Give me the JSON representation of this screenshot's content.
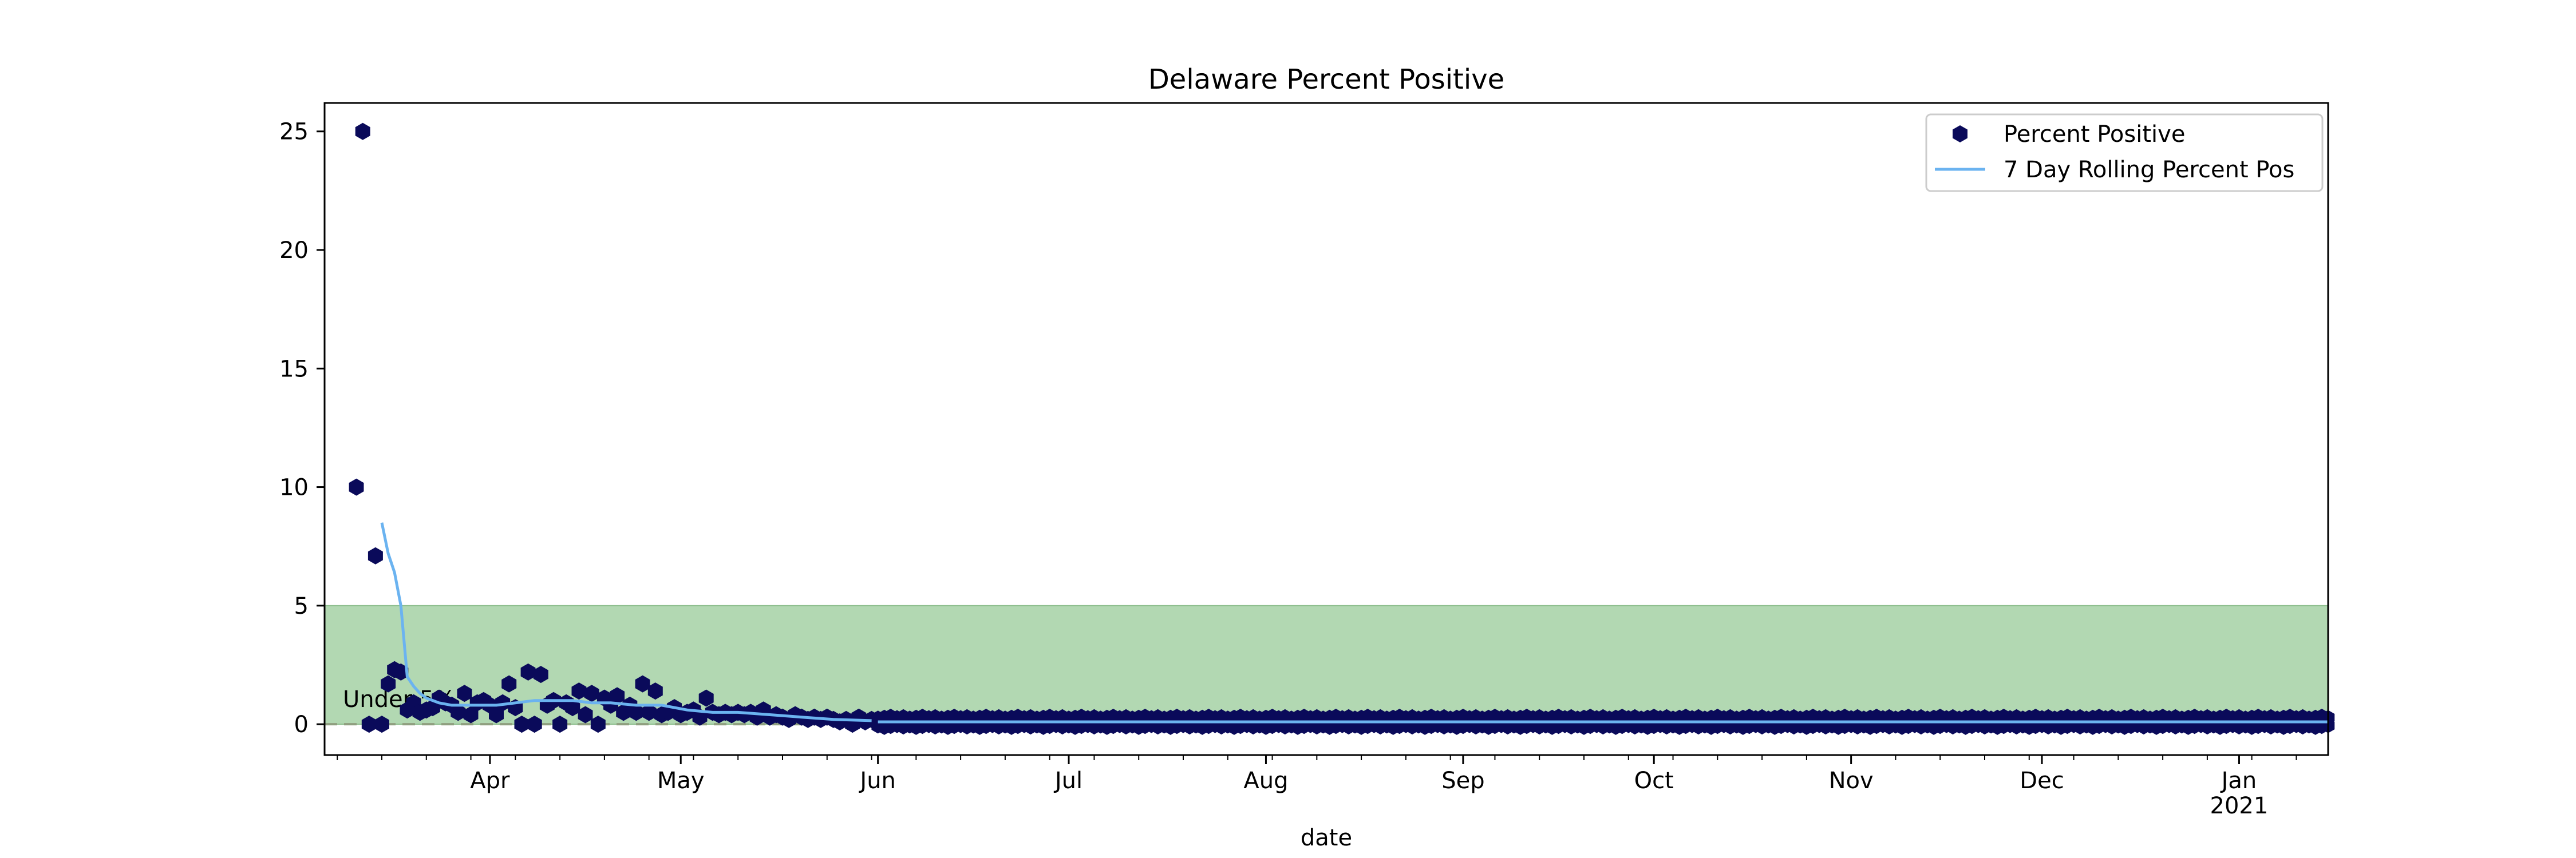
{
  "chart_data": {
    "type": "scatter",
    "title": "Delaware Percent Positive",
    "xlabel": "date",
    "ylabel": "",
    "xlim": [
      "2020-03-06",
      "2021-01-15"
    ],
    "ylim": [
      -1.3,
      26.2
    ],
    "yticks": [
      0,
      5,
      10,
      15,
      20,
      25
    ],
    "xticks": [
      {
        "date": "2020-04-01",
        "label": "Apr",
        "sublabel": ""
      },
      {
        "date": "2020-05-01",
        "label": "May",
        "sublabel": ""
      },
      {
        "date": "2020-06-01",
        "label": "Jun",
        "sublabel": ""
      },
      {
        "date": "2020-07-01",
        "label": "Jul",
        "sublabel": ""
      },
      {
        "date": "2020-08-01",
        "label": "Aug",
        "sublabel": ""
      },
      {
        "date": "2020-09-01",
        "label": "Sep",
        "sublabel": ""
      },
      {
        "date": "2020-10-01",
        "label": "Oct",
        "sublabel": ""
      },
      {
        "date": "2020-11-01",
        "label": "Nov",
        "sublabel": ""
      },
      {
        "date": "2020-12-01",
        "label": "Dec",
        "sublabel": ""
      },
      {
        "date": "2021-01-01",
        "label": "Jan",
        "sublabel": "2021"
      }
    ],
    "grid": false,
    "legend_position": "top-right",
    "shaded_band": {
      "y_from": 0,
      "y_to": 5,
      "color": "#b2d8b2",
      "edge_color": "#8fbf8f",
      "label": "Under 5%"
    },
    "reference_line": {
      "y": 0,
      "style": "dashed",
      "color": "#8f9f7f"
    },
    "series": [
      {
        "name": "Percent Positive",
        "kind": "scatter",
        "marker": "hexagon",
        "color": "#0a0a5a",
        "points": [
          [
            "2020-03-11",
            10.0
          ],
          [
            "2020-03-12",
            25.0
          ],
          [
            "2020-03-13",
            0.0
          ],
          [
            "2020-03-14",
            7.1
          ],
          [
            "2020-03-15",
            0.0
          ],
          [
            "2020-03-16",
            1.7
          ],
          [
            "2020-03-17",
            2.3
          ],
          [
            "2020-03-18",
            2.2
          ],
          [
            "2020-03-19",
            0.6
          ],
          [
            "2020-03-20",
            0.9
          ],
          [
            "2020-03-21",
            0.5
          ],
          [
            "2020-03-22",
            0.6
          ],
          [
            "2020-03-23",
            0.7
          ],
          [
            "2020-03-24",
            1.1
          ],
          [
            "2020-03-25",
            0.9
          ],
          [
            "2020-03-26",
            0.8
          ],
          [
            "2020-03-27",
            0.5
          ],
          [
            "2020-03-28",
            1.3
          ],
          [
            "2020-03-29",
            0.4
          ],
          [
            "2020-03-30",
            0.9
          ],
          [
            "2020-03-31",
            1.0
          ],
          [
            "2020-04-01",
            0.8
          ],
          [
            "2020-04-02",
            0.4
          ],
          [
            "2020-04-03",
            0.9
          ],
          [
            "2020-04-04",
            1.7
          ],
          [
            "2020-04-05",
            0.7
          ],
          [
            "2020-04-06",
            0.0
          ],
          [
            "2020-04-07",
            2.2
          ],
          [
            "2020-04-08",
            0.0
          ],
          [
            "2020-04-09",
            2.1
          ],
          [
            "2020-04-10",
            0.8
          ],
          [
            "2020-04-11",
            1.0
          ],
          [
            "2020-04-12",
            0.0
          ],
          [
            "2020-04-13",
            0.9
          ],
          [
            "2020-04-14",
            0.7
          ],
          [
            "2020-04-15",
            1.4
          ],
          [
            "2020-04-16",
            0.4
          ],
          [
            "2020-04-17",
            1.3
          ],
          [
            "2020-04-18",
            0.0
          ],
          [
            "2020-04-19",
            1.1
          ],
          [
            "2020-04-20",
            0.8
          ],
          [
            "2020-04-21",
            1.2
          ],
          [
            "2020-04-22",
            0.5
          ],
          [
            "2020-04-23",
            0.8
          ],
          [
            "2020-04-24",
            0.5
          ],
          [
            "2020-04-25",
            1.7
          ],
          [
            "2020-04-26",
            0.5
          ],
          [
            "2020-04-27",
            1.4
          ],
          [
            "2020-04-28",
            0.4
          ],
          [
            "2020-04-29",
            0.5
          ],
          [
            "2020-04-30",
            0.7
          ],
          [
            "2020-05-01",
            0.4
          ],
          [
            "2020-05-02",
            0.5
          ],
          [
            "2020-05-03",
            0.6
          ],
          [
            "2020-05-04",
            0.3
          ],
          [
            "2020-05-05",
            1.1
          ],
          [
            "2020-05-06",
            0.5
          ],
          [
            "2020-05-07",
            0.4
          ],
          [
            "2020-05-08",
            0.5
          ],
          [
            "2020-05-09",
            0.4
          ],
          [
            "2020-05-10",
            0.5
          ],
          [
            "2020-05-11",
            0.4
          ],
          [
            "2020-05-12",
            0.5
          ],
          [
            "2020-05-13",
            0.3
          ],
          [
            "2020-05-14",
            0.6
          ],
          [
            "2020-05-15",
            0.3
          ],
          [
            "2020-05-16",
            0.4
          ],
          [
            "2020-05-17",
            0.3
          ],
          [
            "2020-05-18",
            0.2
          ],
          [
            "2020-05-19",
            0.4
          ],
          [
            "2020-05-20",
            0.3
          ],
          [
            "2020-05-21",
            0.2
          ],
          [
            "2020-05-22",
            0.3
          ],
          [
            "2020-05-23",
            0.2
          ],
          [
            "2020-05-24",
            0.3
          ],
          [
            "2020-05-25",
            0.2
          ],
          [
            "2020-05-26",
            0.1
          ],
          [
            "2020-05-27",
            0.2
          ],
          [
            "2020-05-28",
            0.0
          ],
          [
            "2020-05-29",
            0.3
          ],
          [
            "2020-05-30",
            0.1
          ],
          [
            "2020-05-31",
            0.2
          ]
        ]
      },
      {
        "name": "7 Day Rolling Percent Pos",
        "kind": "line",
        "color": "#6bb3f0",
        "points": [
          [
            "2020-03-15",
            8.5
          ],
          [
            "2020-03-16",
            7.2
          ],
          [
            "2020-03-17",
            6.4
          ],
          [
            "2020-03-18",
            5.0
          ],
          [
            "2020-03-19",
            2.0
          ],
          [
            "2020-03-20",
            1.6
          ],
          [
            "2020-03-21",
            1.3
          ],
          [
            "2020-03-22",
            1.1
          ],
          [
            "2020-03-24",
            0.9
          ],
          [
            "2020-03-26",
            0.8
          ],
          [
            "2020-03-28",
            0.8
          ],
          [
            "2020-03-30",
            0.8
          ],
          [
            "2020-04-02",
            0.8
          ],
          [
            "2020-04-05",
            0.9
          ],
          [
            "2020-04-08",
            1.0
          ],
          [
            "2020-04-11",
            1.0
          ],
          [
            "2020-04-14",
            1.0
          ],
          [
            "2020-04-17",
            0.9
          ],
          [
            "2020-04-20",
            0.9
          ],
          [
            "2020-04-24",
            0.8
          ],
          [
            "2020-04-28",
            0.8
          ],
          [
            "2020-05-02",
            0.6
          ],
          [
            "2020-05-06",
            0.5
          ],
          [
            "2020-05-10",
            0.5
          ],
          [
            "2020-05-15",
            0.4
          ],
          [
            "2020-05-20",
            0.3
          ],
          [
            "2020-05-25",
            0.2
          ],
          [
            "2020-05-31",
            0.15
          ]
        ]
      }
    ],
    "dense_band": {
      "description": "daily markers from June onward",
      "from": "2020-06-01",
      "to": "2021-01-15",
      "marker_values": [
        0.3,
        -0.1
      ],
      "rolling_value": 0.1
    }
  }
}
